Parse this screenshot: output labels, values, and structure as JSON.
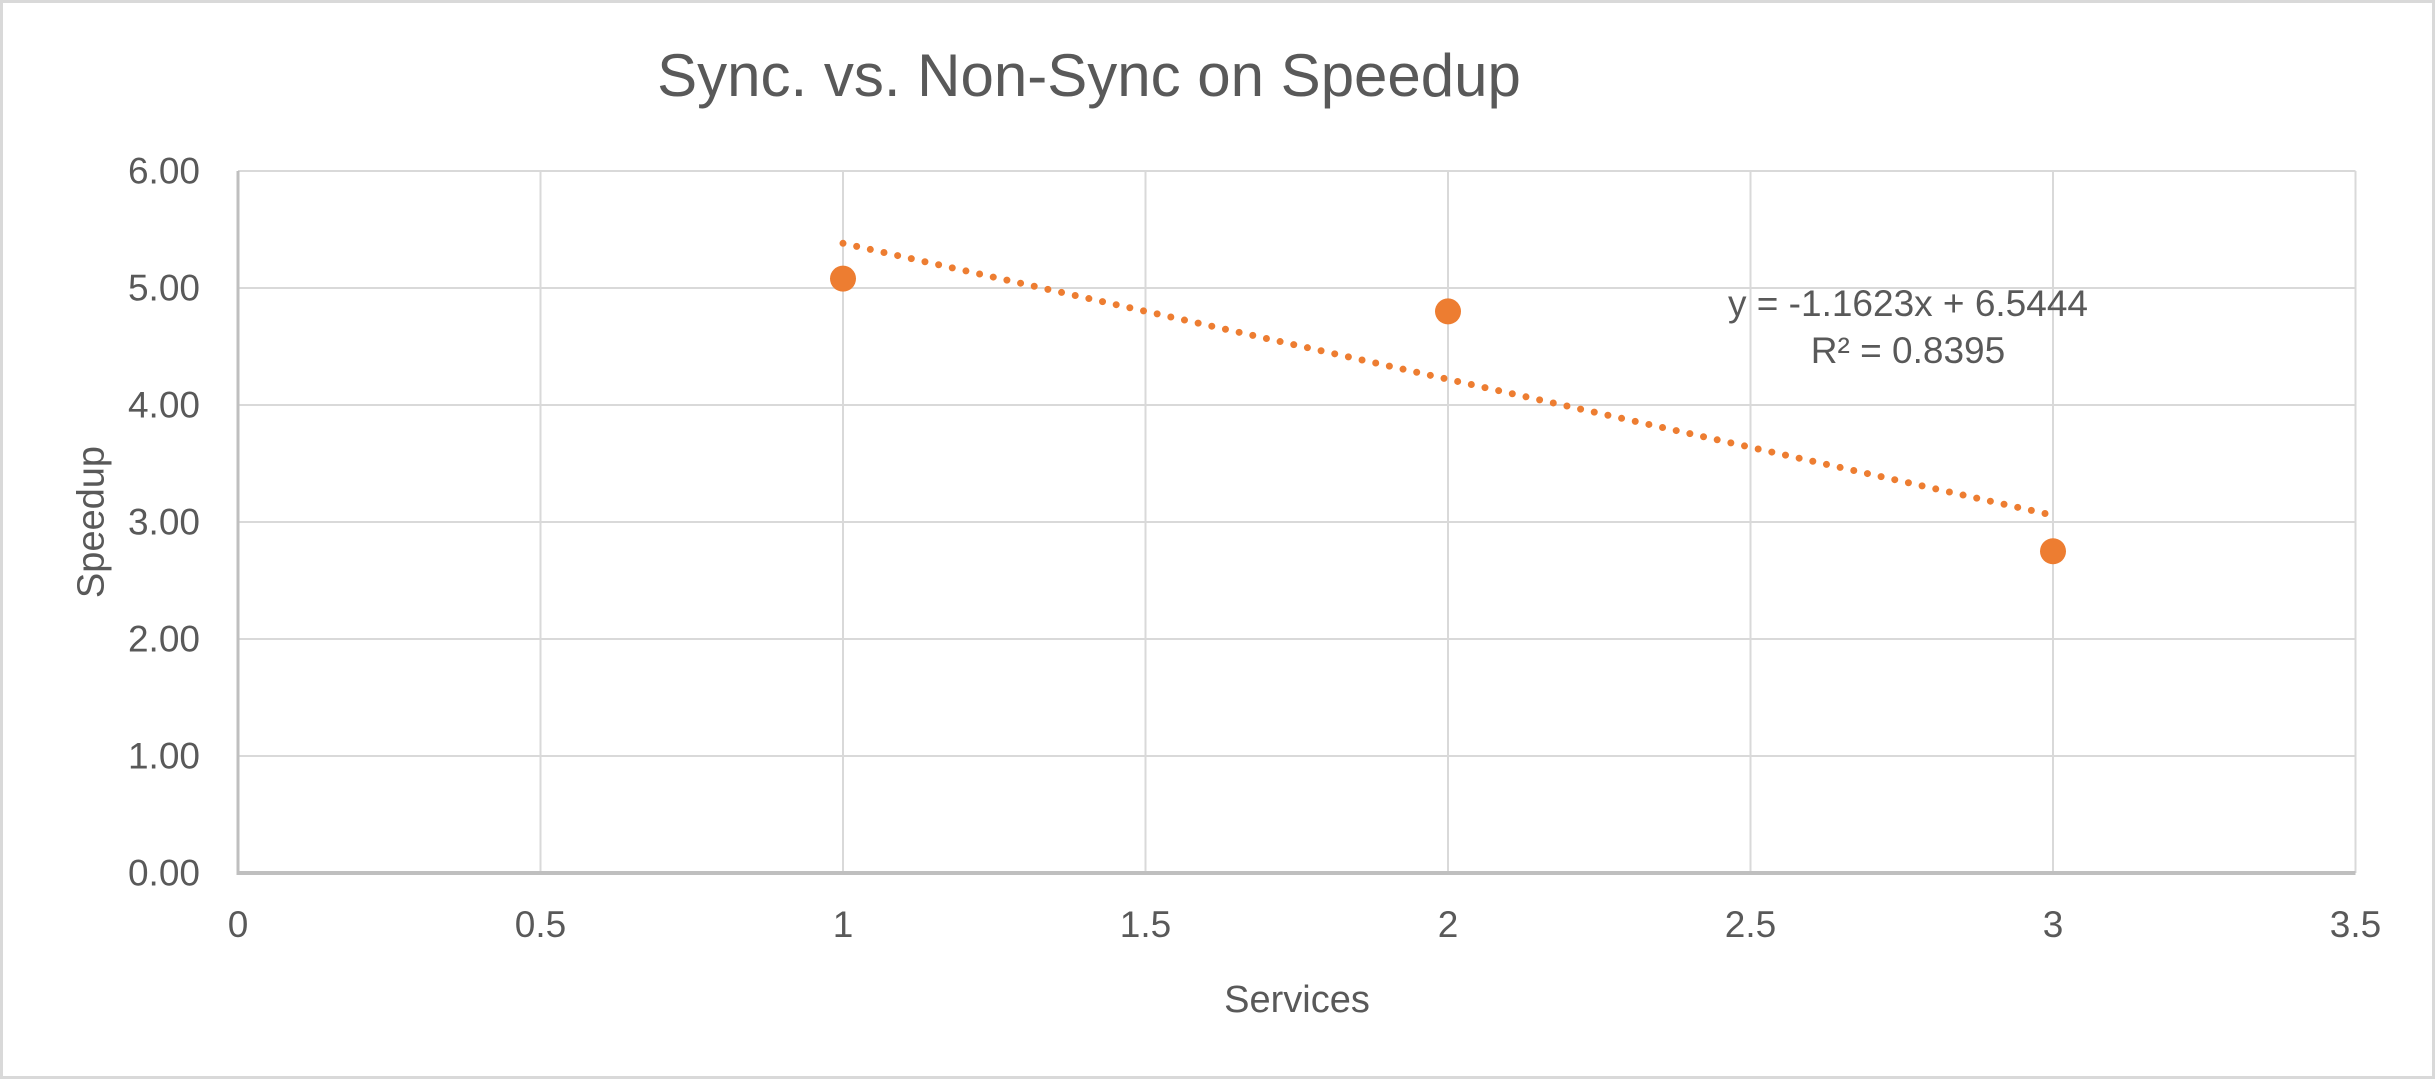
{
  "chart_data": {
    "type": "scatter",
    "title": "Sync. vs. Non-Sync on Speedup",
    "xlabel": "Services",
    "ylabel": "Speedup",
    "xlim": [
      0,
      3.5
    ],
    "ylim": [
      0,
      6
    ],
    "grid": true,
    "x_tick_values": [
      0,
      0.5,
      1,
      1.5,
      2,
      2.5,
      3,
      3.5
    ],
    "x_tick_labels": [
      "0",
      "0.5",
      "1",
      "1.5",
      "2",
      "2.5",
      "3",
      "3.5"
    ],
    "y_tick_values": [
      0,
      1,
      2,
      3,
      4,
      5,
      6
    ],
    "y_tick_labels": [
      "0.00",
      "1.00",
      "2.00",
      "3.00",
      "4.00",
      "5.00",
      "6.00"
    ],
    "series": [
      {
        "name": "Speedup",
        "marker": "circle",
        "points": [
          {
            "x": 1,
            "y": 5.08
          },
          {
            "x": 2,
            "y": 4.8
          },
          {
            "x": 3,
            "y": 2.75
          }
        ]
      }
    ],
    "trendline": {
      "style": "dotted",
      "slope": -1.1623,
      "intercept": 6.5444,
      "x_start": 1,
      "x_end": 3,
      "equation_label": "y = -1.1623x + 6.5444",
      "r_squared_label": "R² = 0.8395"
    },
    "colors": {
      "series": "#ED7D31",
      "gridline": "#D9D9D9",
      "axis_line": "#BFBFBF",
      "text": "#595959",
      "background": "#FFFFFF",
      "frame_border": "#D9D9D9"
    },
    "legend": null
  }
}
